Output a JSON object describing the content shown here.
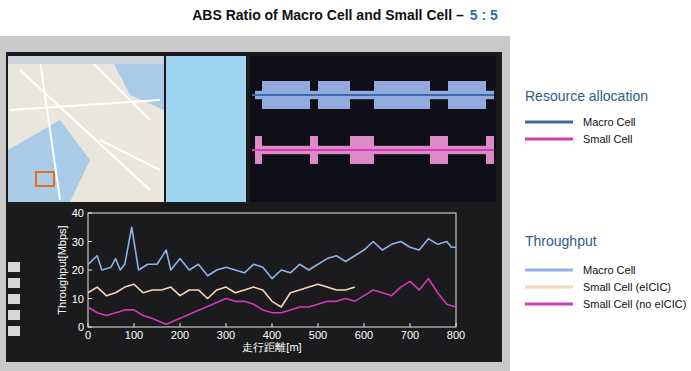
{
  "header": {
    "title": "ABS Ratio of Macro Cell and Small Cell –",
    "ratio": "5 : 5"
  },
  "resource_allocation": {
    "title": "Resource allocation",
    "series": [
      {
        "name": "Macro Cell",
        "color": "#3d6aa8"
      },
      {
        "name": "Small Cell",
        "color": "#d23ab8"
      }
    ]
  },
  "chart_data": {
    "type": "line",
    "legend_title": "Throughput",
    "x_label": "走行距離[m]",
    "y_label": "Throughput[Mbps]",
    "xlim": [
      0,
      800
    ],
    "ylim": [
      0,
      40
    ],
    "xticks": [
      0,
      100,
      200,
      300,
      400,
      500,
      600,
      700,
      800
    ],
    "yticks": [
      0,
      10,
      20,
      30,
      40
    ],
    "grid": false,
    "series": [
      {
        "name": "Macro Cell",
        "color": "#8fb0e8",
        "x": [
          0,
          20,
          30,
          50,
          60,
          70,
          80,
          95,
          100,
          110,
          130,
          150,
          170,
          180,
          200,
          220,
          240,
          260,
          280,
          300,
          320,
          340,
          360,
          380,
          400,
          420,
          440,
          460,
          480,
          500,
          520,
          540,
          560,
          580,
          600,
          620,
          640,
          660,
          680,
          700,
          720,
          740,
          760,
          780,
          790,
          800
        ],
        "values": [
          22,
          25,
          20,
          21,
          24,
          20,
          22,
          35,
          30,
          20,
          22,
          22,
          27,
          20,
          24,
          20,
          22,
          18,
          20,
          21,
          20,
          19,
          22,
          21,
          17,
          20,
          19,
          22,
          20,
          22,
          24,
          25,
          23,
          25,
          27,
          30,
          27,
          29,
          30,
          28,
          27,
          31,
          29,
          30,
          28,
          28
        ]
      },
      {
        "name": "Small Cell (eICIC)",
        "color": "#f6d5b8",
        "x": [
          0,
          20,
          40,
          60,
          80,
          100,
          120,
          140,
          160,
          180,
          200,
          220,
          240,
          260,
          280,
          300,
          320,
          340,
          360,
          380,
          400,
          420,
          440,
          460,
          480,
          500,
          520,
          540,
          560,
          580
        ],
        "values": [
          12,
          14,
          11,
          12,
          14,
          15,
          12,
          13,
          13,
          14,
          11,
          13,
          13,
          10,
          13,
          14,
          12,
          13,
          14,
          13,
          9,
          7,
          12,
          13,
          14,
          15,
          14,
          13,
          13,
          14
        ]
      },
      {
        "name": "Small Cell (no eICIC)",
        "color": "#d23ab8",
        "x": [
          0,
          20,
          40,
          60,
          80,
          100,
          120,
          140,
          170,
          300,
          320,
          340,
          360,
          380,
          400,
          420,
          440,
          460,
          480,
          500,
          520,
          540,
          560,
          580,
          600,
          620,
          640,
          660,
          680,
          700,
          720,
          740,
          760,
          780,
          800
        ],
        "values": [
          7,
          5,
          4,
          5,
          6,
          6,
          4,
          3,
          1,
          10,
          9,
          9,
          8,
          6,
          5,
          5,
          6,
          7,
          7,
          8,
          9,
          9,
          10,
          9,
          11,
          13,
          12,
          11,
          14,
          16,
          13,
          17,
          12,
          8,
          7
        ]
      }
    ]
  }
}
